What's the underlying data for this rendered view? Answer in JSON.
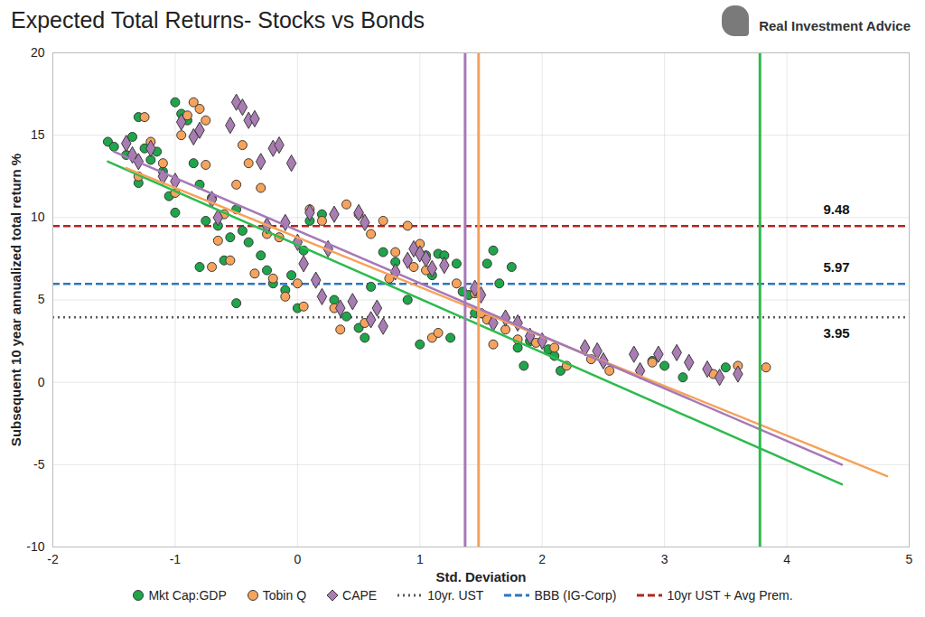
{
  "chart_data": {
    "type": "scatter",
    "title": "Expected Total Returns- Stocks vs Bonds",
    "brand": "Real Investment Advice",
    "x_label": "Std. Deviation",
    "y_label": "Subsequent 10 year annualized total return %",
    "xlim": [
      -2,
      5
    ],
    "ylim": [
      -10,
      20
    ],
    "xticks": [
      -2,
      -1,
      0,
      1,
      2,
      3,
      4,
      5
    ],
    "yticks": [
      -10,
      -5,
      0,
      5,
      10,
      15,
      20
    ],
    "grid": true,
    "legend": "bottom",
    "series": [
      {
        "name": "Mkt Cap:GDP",
        "type": "scatter",
        "color": "#1fa64b",
        "marker": "circle",
        "x": [
          -1.55,
          -1.5,
          -1.4,
          -1.35,
          -1.3,
          -1.3,
          -1.25,
          -1.2,
          -1.15,
          -1.1,
          -1.05,
          -1.0,
          -1.0,
          -0.95,
          -0.9,
          -0.85,
          -0.8,
          -0.8,
          -0.75,
          -0.7,
          -0.65,
          -0.6,
          -0.55,
          -0.5,
          -0.5,
          -0.45,
          -0.4,
          -0.3,
          -0.25,
          -0.2,
          -0.1,
          -0.05,
          0.0,
          0.05,
          0.1,
          0.2,
          0.3,
          0.4,
          0.5,
          0.55,
          0.6,
          0.7,
          0.8,
          0.9,
          1.0,
          1.05,
          1.1,
          1.15,
          1.2,
          1.25,
          1.3,
          1.35,
          1.4,
          1.45,
          1.55,
          1.6,
          1.65,
          1.75,
          1.8,
          1.85,
          1.9,
          2.05,
          2.1,
          2.15,
          2.9,
          3.0,
          3.15,
          3.5
        ],
        "values": [
          14.6,
          14.3,
          13.8,
          14.9,
          16.1,
          12.1,
          14.2,
          13.5,
          14.0,
          12.8,
          11.3,
          10.3,
          17.0,
          16.3,
          15.9,
          13.3,
          12.0,
          7.0,
          9.8,
          11.2,
          9.5,
          7.4,
          8.8,
          4.8,
          10.5,
          9.2,
          8.5,
          7.7,
          6.8,
          6.0,
          5.6,
          6.5,
          4.5,
          8.0,
          9.8,
          10.2,
          5.0,
          4.0,
          3.3,
          2.7,
          5.8,
          7.9,
          7.3,
          5.0,
          2.3,
          7.7,
          6.5,
          7.8,
          7.7,
          2.7,
          7.2,
          5.5,
          5.3,
          4.2,
          7.2,
          8.0,
          6.0,
          7.0,
          2.1,
          1.0,
          2.5,
          2.0,
          1.6,
          0.7,
          1.3,
          1.0,
          0.3,
          0.9
        ]
      },
      {
        "name": "Tobin Q",
        "type": "scatter",
        "color": "#f7a35c",
        "marker": "circle",
        "x": [
          -1.3,
          -1.25,
          -1.2,
          -1.1,
          -1.0,
          -0.95,
          -0.9,
          -0.85,
          -0.8,
          -0.75,
          -0.75,
          -0.7,
          -0.65,
          -0.6,
          -0.55,
          -0.5,
          -0.45,
          -0.4,
          -0.35,
          -0.3,
          -0.25,
          -0.2,
          -0.15,
          -0.1,
          0.0,
          0.05,
          0.1,
          0.2,
          0.3,
          0.35,
          0.4,
          0.5,
          0.55,
          0.6,
          0.7,
          0.75,
          0.8,
          0.9,
          0.95,
          1.0,
          1.05,
          1.1,
          1.15,
          1.3,
          1.45,
          1.5,
          1.55,
          1.6,
          1.7,
          1.8,
          1.95,
          2.1,
          2.2,
          2.4,
          2.55,
          2.9,
          3.4,
          3.6,
          3.83
        ],
        "values": [
          12.5,
          16.1,
          14.6,
          13.3,
          11.5,
          15.0,
          16.2,
          17.0,
          16.6,
          15.9,
          13.2,
          7.0,
          8.6,
          10.2,
          7.4,
          12.0,
          14.4,
          13.3,
          6.6,
          11.8,
          9.0,
          6.3,
          8.8,
          5.2,
          6.0,
          4.6,
          10.5,
          9.8,
          4.5,
          3.2,
          10.8,
          10.2,
          3.6,
          9.0,
          9.8,
          6.3,
          7.9,
          9.5,
          7.0,
          8.4,
          6.8,
          2.7,
          3.0,
          6.0,
          5.4,
          4.2,
          3.8,
          2.3,
          3.2,
          2.6,
          2.4,
          2.1,
          1.0,
          1.4,
          0.7,
          1.2,
          0.5,
          1.0,
          0.9
        ]
      },
      {
        "name": "CAPE",
        "type": "scatter",
        "color": "#a97db3",
        "marker": "diamond",
        "x": [
          -1.4,
          -1.35,
          -1.3,
          -1.2,
          -1.1,
          -1.0,
          -0.95,
          -0.85,
          -0.8,
          -0.7,
          -0.65,
          -0.55,
          -0.5,
          -0.45,
          -0.4,
          -0.35,
          -0.3,
          -0.25,
          -0.2,
          -0.15,
          -0.1,
          -0.05,
          0.0,
          0.05,
          0.1,
          0.15,
          0.2,
          0.25,
          0.3,
          0.35,
          0.45,
          0.5,
          0.55,
          0.6,
          0.65,
          0.7,
          0.8,
          0.9,
          0.95,
          1.0,
          1.05,
          1.1,
          1.2,
          1.45,
          1.5,
          1.6,
          1.7,
          1.8,
          1.9,
          2.0,
          2.35,
          2.45,
          2.5,
          2.75,
          2.8,
          2.95,
          3.1,
          3.2,
          3.35,
          3.45,
          3.6
        ],
        "values": [
          14.5,
          13.8,
          13.4,
          14.2,
          12.5,
          12.2,
          15.8,
          14.9,
          15.3,
          11.1,
          10.0,
          15.6,
          17.0,
          16.7,
          15.9,
          16.0,
          13.4,
          9.5,
          14.2,
          14.4,
          9.7,
          13.3,
          8.5,
          7.2,
          10.3,
          6.2,
          5.2,
          8.1,
          10.2,
          4.5,
          4.9,
          10.3,
          9.7,
          3.8,
          4.5,
          3.4,
          6.7,
          7.4,
          8.1,
          7.8,
          7.5,
          6.9,
          7.1,
          5.7,
          5.3,
          3.6,
          3.9,
          3.6,
          2.8,
          2.5,
          2.1,
          1.9,
          1.3,
          1.7,
          0.7,
          1.7,
          1.8,
          1.2,
          0.8,
          0.3,
          0.5
        ]
      },
      {
        "name": "10yr. UST",
        "type": "hline",
        "color": "#595959",
        "line_style": "dotted",
        "data_labels": true,
        "values": [
          3.95
        ]
      },
      {
        "name": "BBB (IG-Corp)",
        "type": "hline",
        "color": "#2a78c0",
        "line_style": "dashed",
        "data_labels": true,
        "values": [
          5.97
        ]
      },
      {
        "name": "10yr UST + Avg Prem.",
        "type": "hline",
        "color": "#b3261e",
        "line_style": "dashed",
        "data_labels": true,
        "values": [
          9.48
        ]
      }
    ],
    "trend_lines": [
      {
        "color": "#2dbb4e",
        "x": [
          -1.55,
          4.45
        ],
        "values": [
          13.4,
          -6.2
        ]
      },
      {
        "color": "#f5a35a",
        "x": [
          -1.4,
          4.82
        ],
        "values": [
          13.0,
          -5.7
        ]
      },
      {
        "color": "#a678b8",
        "x": [
          -1.5,
          4.45
        ],
        "values": [
          14.0,
          -5.0
        ]
      }
    ],
    "vertical_lines": [
      {
        "color": "#a678b8",
        "x": 1.37
      },
      {
        "color": "#f5a35a",
        "x": 1.48
      },
      {
        "color": "#2dbb4e",
        "x": 3.78
      }
    ]
  }
}
